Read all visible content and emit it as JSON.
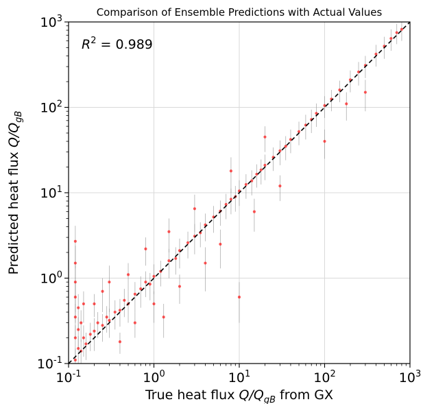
{
  "chart_data": {
    "type": "scatter",
    "title": "Comparison of Ensemble Predictions with Actual Values",
    "xlabel": {
      "pre": "True heat flux ",
      "math": "Q/Q",
      "sub": "gB",
      "post": " from GX"
    },
    "ylabel": {
      "pre": "Predicted heat flux ",
      "math": "Q/Q",
      "sub": "gB",
      "post": ""
    },
    "xscale": "log",
    "yscale": "log",
    "xlim": [
      0.1,
      1000
    ],
    "ylim": [
      0.1,
      1000
    ],
    "tick_exponents": [
      "-1",
      "0",
      "1",
      "2",
      "3"
    ],
    "tick_base": "10",
    "grid": true,
    "annotation": {
      "symbol": "R",
      "sup": "2",
      "text": " = 0.989"
    },
    "reference_line": {
      "style": "dashed",
      "color": "#000000",
      "from": [
        0.1,
        0.1
      ],
      "to": [
        1000,
        1000
      ]
    },
    "marker_color": "#ff0000",
    "errorbar_color": "#8c8c8c",
    "series": [
      {
        "points": [
          [
            0.12,
            0.11,
            0.04
          ],
          [
            0.12,
            0.2,
            0.08
          ],
          [
            0.12,
            0.35,
            0.15
          ],
          [
            0.12,
            0.6,
            0.3
          ],
          [
            0.12,
            0.9,
            0.5
          ],
          [
            0.12,
            1.5,
            0.9
          ],
          [
            0.12,
            2.7,
            1.4
          ],
          [
            0.13,
            0.15,
            0.06
          ],
          [
            0.13,
            0.25,
            0.1
          ],
          [
            0.13,
            0.45,
            0.2
          ],
          [
            0.14,
            0.14,
            0.05
          ],
          [
            0.14,
            0.3,
            0.12
          ],
          [
            0.15,
            0.2,
            0.08
          ],
          [
            0.15,
            0.5,
            0.2
          ],
          [
            0.16,
            0.17,
            0.06
          ],
          [
            0.18,
            0.22,
            0.08
          ],
          [
            0.2,
            0.24,
            0.1
          ],
          [
            0.2,
            0.5,
            0.15
          ],
          [
            0.22,
            0.3,
            0.1
          ],
          [
            0.25,
            0.28,
            0.1
          ],
          [
            0.25,
            0.7,
            0.3
          ],
          [
            0.28,
            0.35,
            0.12
          ],
          [
            0.3,
            0.32,
            0.12
          ],
          [
            0.3,
            0.9,
            0.5
          ],
          [
            0.35,
            0.4,
            0.15
          ],
          [
            0.4,
            0.42,
            0.15
          ],
          [
            0.4,
            0.18,
            0.05
          ],
          [
            0.45,
            0.55,
            0.2
          ],
          [
            0.5,
            0.5,
            0.2
          ],
          [
            0.5,
            1.1,
            0.4
          ],
          [
            0.6,
            0.65,
            0.25
          ],
          [
            0.6,
            0.3,
            0.1
          ],
          [
            0.7,
            0.75,
            0.3
          ],
          [
            0.8,
            0.9,
            0.3
          ],
          [
            0.8,
            2.2,
            0.8
          ],
          [
            0.9,
            0.85,
            0.3
          ],
          [
            1.0,
            1.05,
            0.4
          ],
          [
            1.0,
            0.5,
            0.2
          ],
          [
            1.2,
            1.2,
            0.4
          ],
          [
            1.3,
            0.35,
            0.15
          ],
          [
            1.5,
            1.6,
            0.6
          ],
          [
            1.5,
            3.5,
            1.5
          ],
          [
            1.8,
            1.7,
            0.6
          ],
          [
            2.0,
            2.1,
            0.8
          ],
          [
            2.0,
            0.8,
            0.3
          ],
          [
            2.5,
            2.6,
            0.9
          ],
          [
            3.0,
            3.1,
            1.2
          ],
          [
            3.0,
            6.5,
            3.0
          ],
          [
            3.5,
            3.4,
            1.1
          ],
          [
            4.0,
            4.2,
            1.5
          ],
          [
            4.0,
            1.5,
            0.8
          ],
          [
            5.0,
            5.2,
            1.8
          ],
          [
            6.0,
            6.1,
            2.0
          ],
          [
            6.0,
            2.5,
            1.2
          ],
          [
            7.0,
            7.3,
            2.4
          ],
          [
            8.0,
            8.4,
            2.8
          ],
          [
            8.0,
            18.0,
            8.0
          ],
          [
            9.0,
            9.0,
            3.0
          ],
          [
            10.0,
            10.5,
            3.5
          ],
          [
            10.0,
            0.6,
            0.3
          ],
          [
            12.0,
            12.5,
            4.0
          ],
          [
            14.0,
            13.8,
            4.5
          ],
          [
            15.0,
            6.0,
            2.5
          ],
          [
            16.0,
            16.5,
            5.0
          ],
          [
            18.0,
            18.5,
            6.0
          ],
          [
            20.0,
            21.0,
            7.0
          ],
          [
            20.0,
            45.0,
            15.0
          ],
          [
            25.0,
            26.0,
            8.0
          ],
          [
            30.0,
            31.0,
            10.0
          ],
          [
            30.0,
            12.0,
            4.0
          ],
          [
            35.0,
            35.0,
            11.0
          ],
          [
            40.0,
            42.0,
            13.0
          ],
          [
            50.0,
            52.0,
            16.0
          ],
          [
            60.0,
            62.0,
            20.0
          ],
          [
            70.0,
            72.0,
            22.0
          ],
          [
            80.0,
            85.0,
            26.0
          ],
          [
            100.0,
            105.0,
            30.0
          ],
          [
            100.0,
            40.0,
            15.0
          ],
          [
            120.0,
            125.0,
            35.0
          ],
          [
            150.0,
            160.0,
            45.0
          ],
          [
            180.0,
            110.0,
            40.0
          ],
          [
            200.0,
            210.0,
            60.0
          ],
          [
            250.0,
            260.0,
            80.0
          ],
          [
            300.0,
            310.0,
            90.0
          ],
          [
            300.0,
            150.0,
            60.0
          ],
          [
            400.0,
            420.0,
            120.0
          ],
          [
            500.0,
            520.0,
            150.0
          ],
          [
            600.0,
            640.0,
            180.0
          ],
          [
            700.0,
            750.0,
            200.0
          ],
          [
            800.0,
            820.0,
            220.0
          ]
        ]
      }
    ]
  }
}
